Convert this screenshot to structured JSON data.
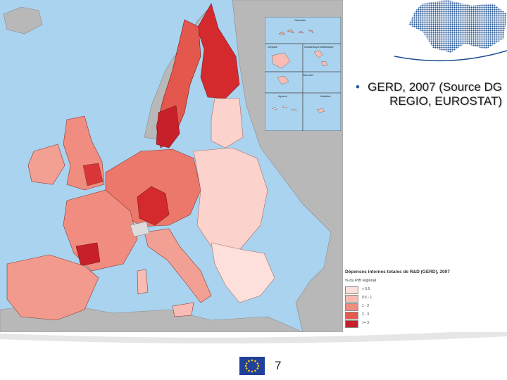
{
  "slide": {
    "bullet_text": "GERD, 2007 (Source DG REGIO, EUROSTAT)",
    "page_number": "7"
  },
  "inset_maps": {
    "labels": [
      "Canarias",
      "Guyane",
      "Guadeloupe Martinique",
      "Réunion",
      "Açores",
      "Madeira"
    ]
  },
  "legend": {
    "title": "Dépenses internes totales de R&D (GERD), 2007",
    "subtitle": "% du PIB régional",
    "classes": [
      {
        "label": "< 0.5",
        "color": "#fde0dc"
      },
      {
        "label": "0.5 - 1",
        "color": "#f8bcb4"
      },
      {
        "label": "1 - 2",
        "color": "#f18d80"
      },
      {
        "label": "2 - 3",
        "color": "#e45c50"
      },
      {
        "label": ">= 3",
        "color": "#c8202a"
      }
    ]
  },
  "colors": {
    "sea": "#a9d3ef",
    "non_eu_land": "#b8b8b8",
    "eu_flag_blue": "#20409a",
    "eu_flag_star": "#ffcc00",
    "corner_map_blue": "#1c4e90"
  }
}
